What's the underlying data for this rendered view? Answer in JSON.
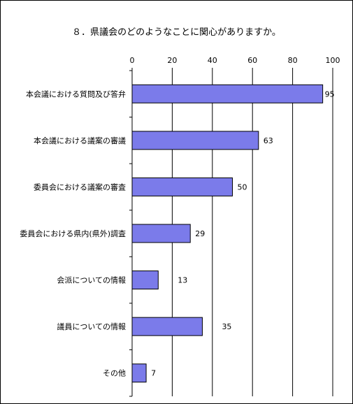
{
  "chart_data": {
    "type": "bar",
    "orientation": "horizontal",
    "title": "８．県議会のどのようなことに関心がありますか。",
    "xlabel": "",
    "ylabel": "",
    "categories": [
      "本会議における質問及び答弁",
      "本会議における議案の審議",
      "委員会における議案の審査",
      "委員会における県内(県外)調査",
      "会派についての情報",
      "議員についての情報",
      "その他"
    ],
    "values": [
      95,
      63,
      50,
      29,
      13,
      35,
      7
    ],
    "xlim": [
      0,
      100
    ],
    "ticks": [
      0,
      20,
      40,
      60,
      80,
      100
    ],
    "bar_color": "#7b7bea",
    "grid": true,
    "axis_position": "top"
  }
}
